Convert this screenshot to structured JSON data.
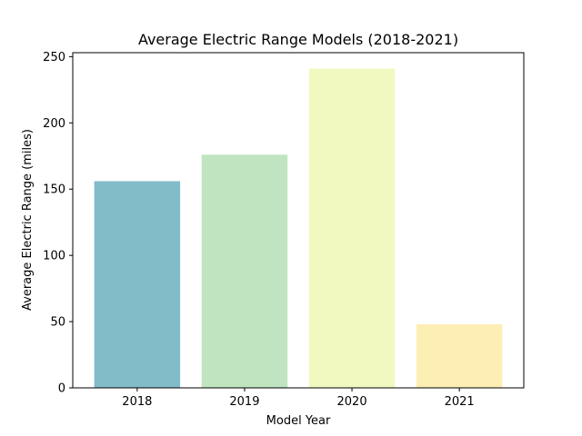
{
  "chart_data": {
    "type": "bar",
    "title": "Average Electric Range Models (2018-2021)",
    "xlabel": "Model Year",
    "ylabel": "Average Electric Range (miles)",
    "categories": [
      "2018",
      "2019",
      "2020",
      "2021"
    ],
    "values": [
      156,
      176,
      241,
      48
    ],
    "colors": [
      "#82bcc9",
      "#c0e4c0",
      "#f1f9c0",
      "#fdeeb4"
    ],
    "ylim": [
      0,
      253
    ],
    "yticks": [
      0,
      50,
      100,
      150,
      200,
      250
    ],
    "grid": false,
    "legend": "none"
  }
}
